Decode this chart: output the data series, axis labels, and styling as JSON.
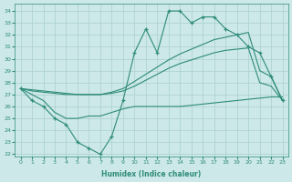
{
  "xlabel": "Humidex (Indice chaleur)",
  "x": [
    0,
    1,
    2,
    3,
    4,
    5,
    6,
    7,
    8,
    9,
    10,
    11,
    12,
    13,
    14,
    15,
    16,
    17,
    18,
    19,
    20,
    21,
    22,
    23
  ],
  "line_spiky": [
    27.5,
    26.5,
    26,
    25,
    24.5,
    23,
    22.5,
    22,
    23.5,
    26.5,
    30.5,
    32.5,
    30.5,
    34,
    34,
    33,
    33.5,
    33.5,
    32.5,
    32,
    31,
    30.5,
    28.5,
    26.5
  ],
  "line_upper": [
    27.5,
    27.4,
    27.3,
    27.2,
    27.1,
    27.0,
    27.0,
    27.0,
    27.2,
    27.5,
    28.1,
    28.7,
    29.3,
    29.9,
    30.4,
    30.8,
    31.2,
    31.6,
    31.8,
    32.0,
    32.2,
    29.0,
    28.5,
    26.5
  ],
  "line_lower": [
    27.5,
    27.3,
    27.2,
    27.1,
    27.0,
    27.0,
    27.0,
    27.0,
    27.1,
    27.3,
    27.7,
    28.2,
    28.7,
    29.2,
    29.6,
    29.9,
    30.2,
    30.5,
    30.7,
    30.8,
    30.9,
    28.0,
    27.7,
    26.5
  ],
  "line_flat": [
    27.5,
    27.0,
    26.5,
    25.5,
    25.0,
    25.0,
    25.2,
    25.2,
    25.5,
    25.8,
    26.0,
    26.0,
    26.0,
    26.0,
    26.0,
    26.1,
    26.2,
    26.3,
    26.4,
    26.5,
    26.6,
    26.7,
    26.8,
    26.8
  ],
  "color": "#2e8b7a",
  "bg_color": "#cce8e8",
  "grid_color": "#aacfcf",
  "ylim": [
    21.8,
    34.6
  ],
  "yticks": [
    22,
    23,
    24,
    25,
    26,
    27,
    28,
    29,
    30,
    31,
    32,
    33,
    34
  ],
  "xlim": [
    -0.5,
    23.5
  ]
}
